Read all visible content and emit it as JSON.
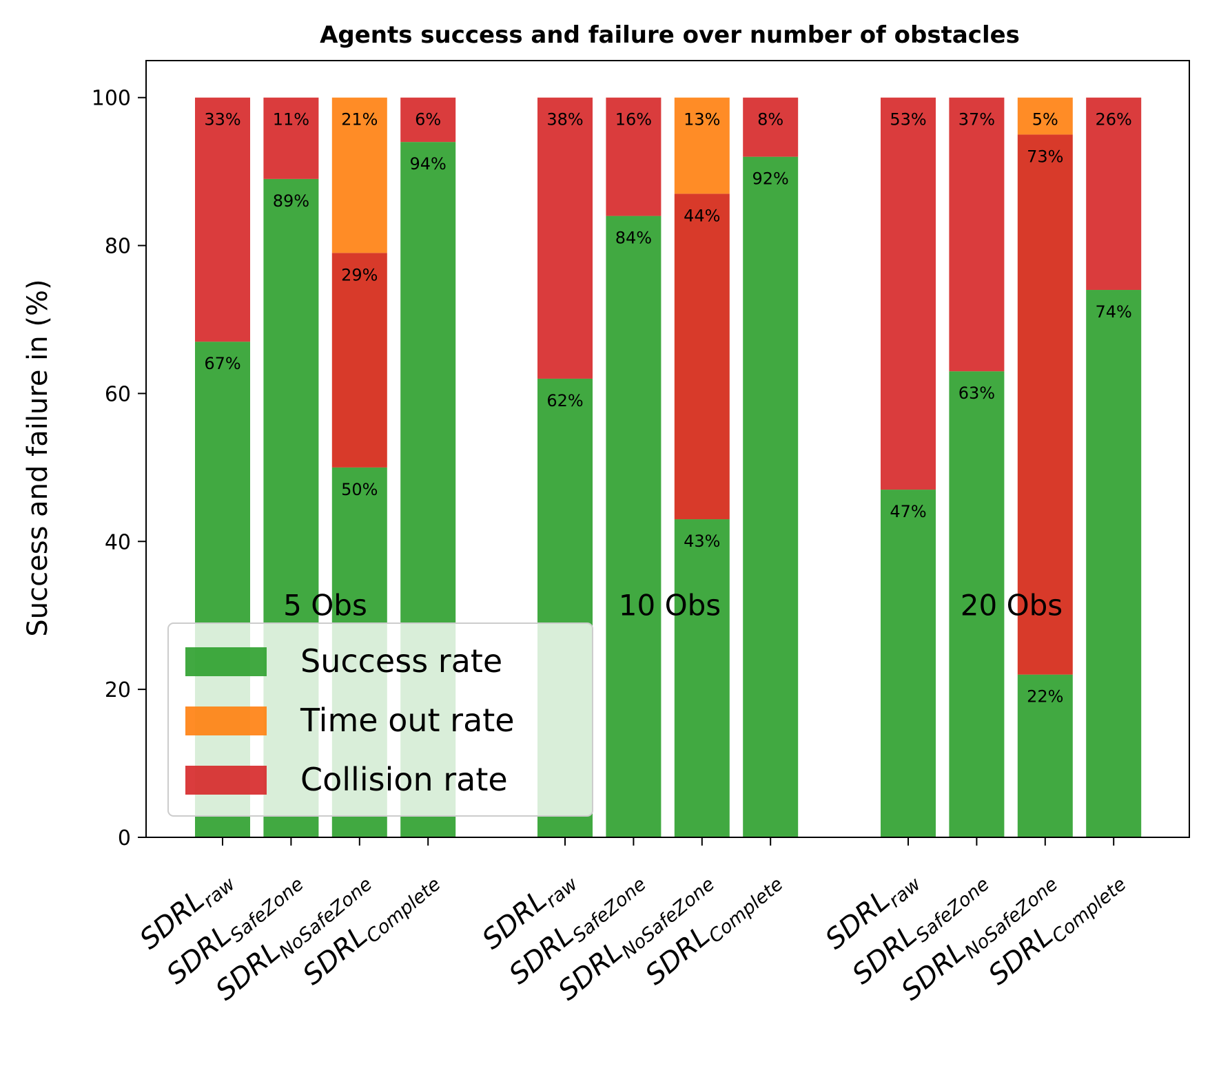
{
  "chart_data": {
    "type": "bar",
    "stacked": true,
    "title": "Agents success and failure over number of obstacles",
    "ylabel": "Success and failure in (%)",
    "xlabel": "",
    "ylim": [
      0,
      105
    ],
    "yticks": [
      0,
      20,
      40,
      60,
      80,
      100
    ],
    "grid": false,
    "legend_position": "lower-left",
    "colors": {
      "success": "#2ca02c",
      "timeout": "#ff7f0e",
      "collision": "#d62728",
      "collision_nosafezone": "#d62f1f"
    },
    "groups": [
      {
        "label": "5 Obs",
        "bars": [
          {
            "label": "SDRL",
            "sub": "raw",
            "success": 67,
            "timeout": 0,
            "collision": 33
          },
          {
            "label": "SDRL",
            "sub": "SafeZone",
            "success": 89,
            "timeout": 0,
            "collision": 11
          },
          {
            "label": "SDRL",
            "sub": "NoSafeZone",
            "success": 50,
            "timeout": 21,
            "collision": 29
          },
          {
            "label": "SDRL",
            "sub": "Complete",
            "success": 94,
            "timeout": 0,
            "collision": 6
          }
        ]
      },
      {
        "label": "10 Obs",
        "bars": [
          {
            "label": "SDRL",
            "sub": "raw",
            "success": 62,
            "timeout": 0,
            "collision": 38
          },
          {
            "label": "SDRL",
            "sub": "SafeZone",
            "success": 84,
            "timeout": 0,
            "collision": 16
          },
          {
            "label": "SDRL",
            "sub": "NoSafeZone",
            "success": 43,
            "timeout": 13,
            "collision": 44
          },
          {
            "label": "SDRL",
            "sub": "Complete",
            "success": 92,
            "timeout": 0,
            "collision": 8
          }
        ]
      },
      {
        "label": "20 Obs",
        "bars": [
          {
            "label": "SDRL",
            "sub": "raw",
            "success": 47,
            "timeout": 0,
            "collision": 53
          },
          {
            "label": "SDRL",
            "sub": "SafeZone",
            "success": 63,
            "timeout": 0,
            "collision": 37
          },
          {
            "label": "SDRL",
            "sub": "NoSafeZone",
            "success": 22,
            "timeout": 5,
            "collision": 73
          },
          {
            "label": "SDRL",
            "sub": "Complete",
            "success": 74,
            "timeout": 0,
            "collision": 26
          }
        ]
      }
    ],
    "legend": [
      {
        "key": "success",
        "label": "Success rate"
      },
      {
        "key": "timeout",
        "label": "Time out rate"
      },
      {
        "key": "collision",
        "label": "Collision rate"
      }
    ]
  }
}
